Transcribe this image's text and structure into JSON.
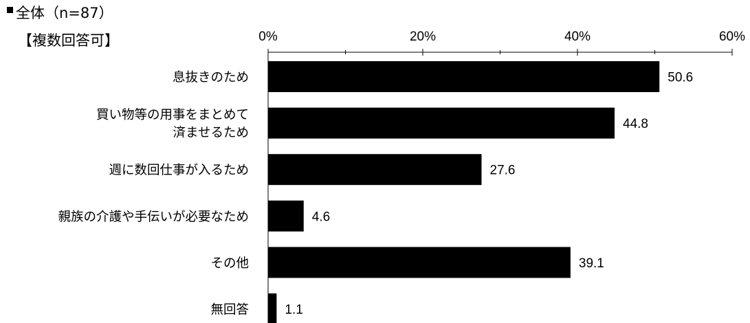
{
  "legend": {
    "series_label": "全体（n=87）"
  },
  "note": "【複数回答可】",
  "chart_data": {
    "type": "bar",
    "orientation": "horizontal",
    "categories": [
      [
        "息抜きのため"
      ],
      [
        "買い物等の用事をまとめて",
        "済ませるため"
      ],
      [
        "週に数回仕事が入るため"
      ],
      [
        "親族の介護や手伝いが必要なため"
      ],
      [
        "その他"
      ],
      [
        "無回答"
      ]
    ],
    "values": [
      50.6,
      44.8,
      27.6,
      4.6,
      39.1,
      1.1
    ],
    "value_labels": [
      "50.6",
      "44.8",
      "27.6",
      "4.6",
      "39.1",
      "1.1"
    ],
    "xlim": [
      0,
      60
    ],
    "xticks": [
      0,
      20,
      40,
      60
    ],
    "xtick_labels": [
      "0%",
      "20%",
      "40%",
      "60%"
    ],
    "axis_position": "top",
    "bar_color": "#000000",
    "grid": false
  }
}
